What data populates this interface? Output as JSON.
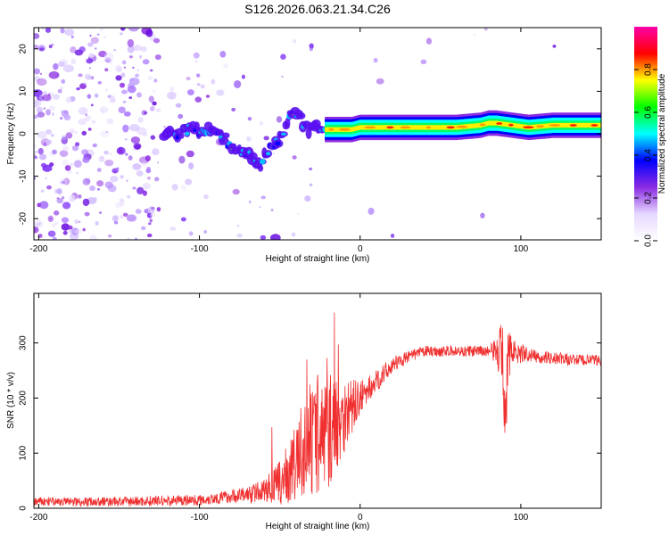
{
  "title": "S126.2026.063.21.34.C26",
  "chart_data": [
    {
      "type": "heatmap",
      "name": "spectrogram",
      "xlabel": "Height of straight line (km)",
      "ylabel": "Frequency (Hz)",
      "xlim": [
        -203,
        150
      ],
      "ylim": [
        -25,
        25
      ],
      "xticks": [
        -200,
        -100,
        0,
        100
      ],
      "xtick_labels": [
        "-200",
        "-100",
        "0",
        "100"
      ],
      "yticks": [
        -20,
        -10,
        0,
        10,
        20
      ],
      "ytick_labels": [
        "-20",
        "-10",
        "0",
        "10",
        "20"
      ],
      "colorbar": {
        "label": "Normalized spectral amplitude",
        "range": [
          0,
          1
        ],
        "ticks": [
          0.0,
          0.2,
          0.4,
          0.6,
          0.8
        ],
        "tick_labels": [
          "0.0",
          "0.2",
          "0.4",
          "0.6",
          "0.8"
        ],
        "colors": [
          "#ffffff",
          "#e6d8ff",
          "#8a2be2",
          "#0000ff",
          "#00ffff",
          "#00ff00",
          "#ffff00",
          "#ff0000",
          "#ff00aa"
        ]
      },
      "ridge_track": {
        "x": [
          -120,
          -105,
          -95,
          -85,
          -78,
          -70,
          -62,
          -55,
          -48,
          -42,
          -36,
          -32,
          -28,
          -22,
          -15,
          -5,
          0,
          20,
          40,
          60,
          75,
          80,
          85,
          95,
          105,
          120,
          150
        ],
        "y": [
          0,
          1,
          1,
          -1,
          -3,
          -5,
          -7,
          -3,
          0,
          5,
          3,
          0,
          2,
          1,
          1,
          1,
          1.5,
          1.5,
          1.5,
          1.5,
          2,
          2.5,
          2.5,
          2,
          1.5,
          2,
          2
        ]
      }
    },
    {
      "type": "line",
      "name": "snr",
      "xlabel": "Height of straight line (km)",
      "ylabel": "SNR (10 * v/v)",
      "xlim": [
        -203,
        150
      ],
      "ylim": [
        0,
        390
      ],
      "xticks": [
        -200,
        -100,
        0,
        100
      ],
      "xtick_labels": [
        "-200",
        "-100",
        "0",
        "100"
      ],
      "yticks": [
        0,
        100,
        200,
        300
      ],
      "ytick_labels": [
        "0",
        "100",
        "200",
        "300"
      ],
      "line_color": "#f03030",
      "baseline_profile": {
        "x": [
          -203,
          -150,
          -100,
          -85,
          -70,
          -60,
          -50,
          -40,
          -30,
          -20,
          -10,
          0,
          10,
          20,
          30,
          40,
          60,
          80,
          85,
          88,
          90,
          92,
          95,
          110,
          130,
          150
        ],
        "y": [
          12,
          12,
          15,
          20,
          25,
          32,
          45,
          80,
          120,
          140,
          170,
          200,
          230,
          260,
          275,
          285,
          285,
          285,
          285,
          280,
          200,
          280,
          285,
          275,
          270,
          268
        ]
      },
      "noise_profile": {
        "x": [
          -203,
          -100,
          -80,
          -60,
          -50,
          -40,
          -30,
          -20,
          -15,
          -10,
          0,
          10,
          30,
          80,
          85,
          90,
          95,
          105,
          150
        ],
        "amp": [
          8,
          10,
          12,
          20,
          40,
          70,
          100,
          110,
          90,
          70,
          30,
          20,
          10,
          10,
          25,
          90,
          25,
          12,
          10
        ]
      }
    }
  ]
}
